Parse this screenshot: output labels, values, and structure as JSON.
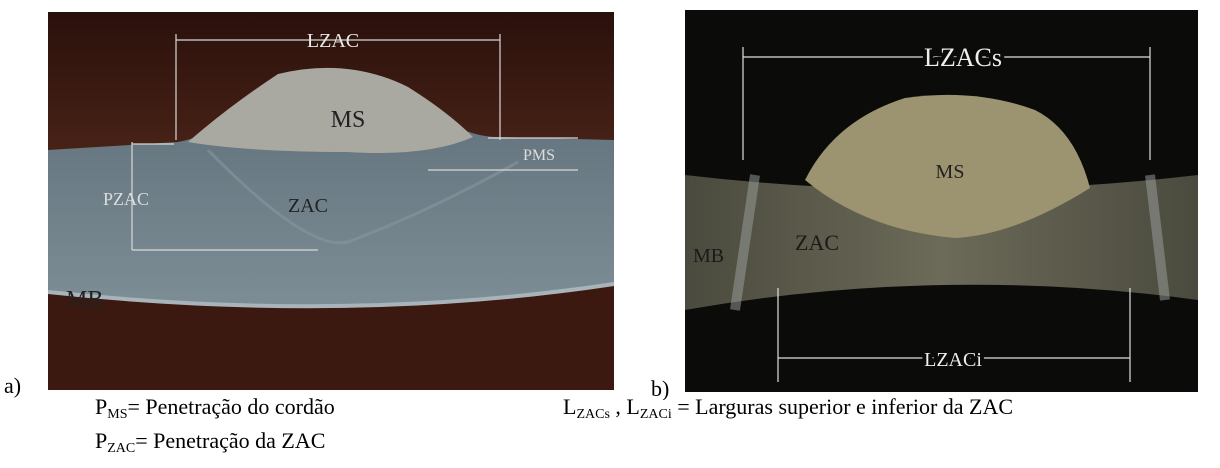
{
  "panels": [
    {
      "label": "a)",
      "annotations": [
        "LZAC",
        "MS",
        "PMS",
        "PZAC",
        "ZAC",
        "MB"
      ]
    },
    {
      "label": "b)",
      "annotations": [
        "LZACs",
        "MS",
        "ZAC",
        "MB",
        "LZACi"
      ]
    }
  ],
  "captions": {
    "left": [
      {
        "symbol": "P",
        "subscript": "MS",
        "text": "= Penetração do cordão"
      },
      {
        "symbol": "P",
        "subscript": "ZAC",
        "text": "= Penetração da ZAC"
      }
    ],
    "right": {
      "symbol1": "L",
      "subscript1": "ZACs",
      "separator": " , ",
      "symbol2": "L",
      "subscript2": "ZACi",
      "text": " = Larguras superior e inferior da ZAC"
    }
  }
}
